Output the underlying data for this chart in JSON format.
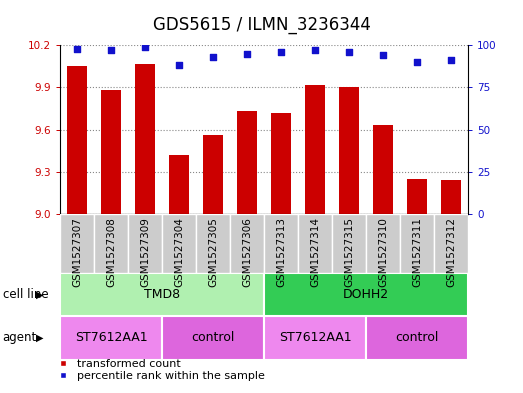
{
  "title": "GDS5615 / ILMN_3236344",
  "samples": [
    "GSM1527307",
    "GSM1527308",
    "GSM1527309",
    "GSM1527304",
    "GSM1527305",
    "GSM1527306",
    "GSM1527313",
    "GSM1527314",
    "GSM1527315",
    "GSM1527310",
    "GSM1527311",
    "GSM1527312"
  ],
  "transformed_count": [
    10.05,
    9.88,
    10.07,
    9.42,
    9.56,
    9.73,
    9.72,
    9.92,
    9.9,
    9.63,
    9.25,
    9.24
  ],
  "percentile_rank": [
    98,
    97,
    99,
    88,
    93,
    95,
    96,
    97,
    96,
    94,
    90,
    91
  ],
  "bar_color": "#cc0000",
  "dot_color": "#1111cc",
  "ymin": 9.0,
  "ymax": 10.2,
  "yticks": [
    9.0,
    9.3,
    9.6,
    9.9,
    10.2
  ],
  "y2min": 0,
  "y2max": 100,
  "y2ticks": [
    0,
    25,
    50,
    75,
    100
  ],
  "left_tick_color": "#cc0000",
  "right_tick_color": "#1111cc",
  "cell_lines": [
    {
      "label": "TMD8",
      "start": 0,
      "end": 6,
      "color": "#b0f0b0"
    },
    {
      "label": "DOHH2",
      "start": 6,
      "end": 12,
      "color": "#33cc55"
    }
  ],
  "agents": [
    {
      "label": "ST7612AA1",
      "start": 0,
      "end": 3,
      "color": "#ee88ee"
    },
    {
      "label": "control",
      "start": 3,
      "end": 6,
      "color": "#dd66dd"
    },
    {
      "label": "ST7612AA1",
      "start": 6,
      "end": 9,
      "color": "#ee88ee"
    },
    {
      "label": "control",
      "start": 9,
      "end": 12,
      "color": "#dd66dd"
    }
  ],
  "bg_color": "#ffffff",
  "tick_bg_color": "#cccccc",
  "grid_color": "#888888",
  "legend_bar_label": "transformed count",
  "legend_dot_label": "percentile rank within the sample",
  "title_fontsize": 12,
  "tick_fontsize": 7.5,
  "row_fontsize": 9,
  "legend_fontsize": 8
}
